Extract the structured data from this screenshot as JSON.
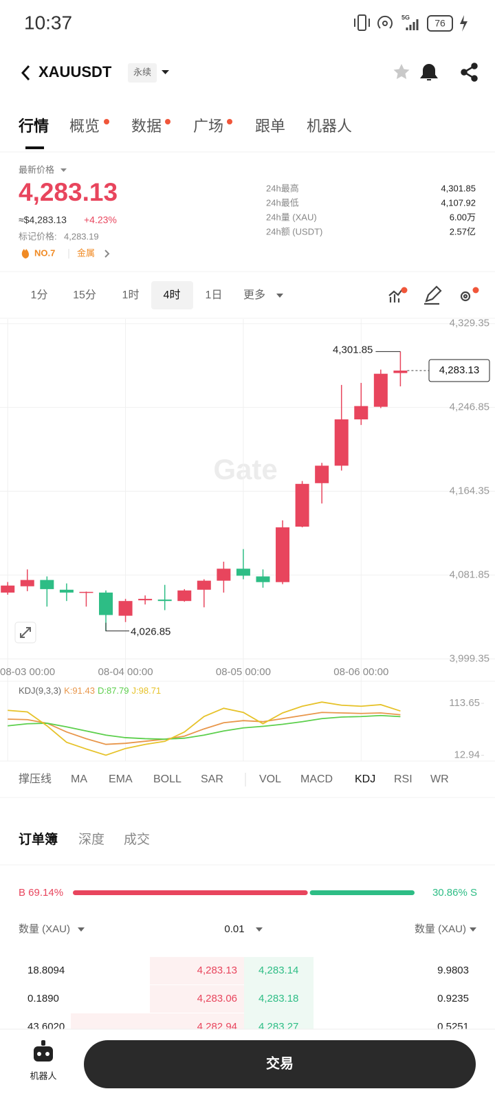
{
  "status_bar": {
    "time": "10:37",
    "network": "5G",
    "battery": "76"
  },
  "header": {
    "symbol": "XAUUSDT",
    "tag": "永续"
  },
  "tabs": [
    "行情",
    "概览",
    "数据",
    "广场",
    "跟单",
    "机器人"
  ],
  "ticker": {
    "label": "最新价格",
    "price": "4,283.13",
    "usd_price": "≈$4,283.13",
    "change": "+4.23%",
    "mark_label": "标记价格:",
    "mark_price": "4,283.19",
    "rank": "NO.7",
    "sector": "金属"
  },
  "stats": [
    {
      "label": "24h最高",
      "value": "4,301.85"
    },
    {
      "label": "24h最低",
      "value": "4,107.92"
    },
    {
      "label": "24h量 (XAU)",
      "value": "6.00万"
    },
    {
      "label": "24h额 (USDT)",
      "value": "2.57亿"
    }
  ],
  "intervals": [
    "1分",
    "15分",
    "1时",
    "4时",
    "1日",
    "更多"
  ],
  "chart": {
    "type": "candlestick",
    "categories": [
      "08-03 00:00",
      null,
      null,
      null,
      null,
      null,
      "08-04 00:00",
      null,
      null,
      null,
      null,
      null,
      "08-05 00:00",
      null,
      null,
      null,
      null,
      null,
      "08-06 00:00",
      null,
      null
    ],
    "open": [
      4064.6,
      4070.8,
      4077.0,
      4067.4,
      4064.6,
      4064.6,
      4041.8,
      4057.0,
      4057.7,
      4056.3,
      4067.4,
      4076.3,
      4088.1,
      4080.5,
      4074.9,
      4129.5,
      4172.3,
      4189.5,
      4235.1,
      4247.5,
      4280.7
    ],
    "high": [
      4075.0,
      4087.4,
      4080.5,
      4073.6,
      4065.6,
      4066.7,
      4058.4,
      4061.8,
      4072.2,
      4068.0,
      4077.7,
      4095.0,
      4107.4,
      4087.4,
      4135.7,
      4174.4,
      4192.3,
      4269.0,
      4271.0,
      4284.1,
      4301.85
    ],
    "low": [
      4062.5,
      4066.0,
      4050.8,
      4056.3,
      4050.8,
      4026.85,
      4035.6,
      4052.9,
      4047.3,
      4055.6,
      4050.1,
      4064.6,
      4077.7,
      4069.4,
      4072.9,
      4128.8,
      4152.3,
      4184.7,
      4229.6,
      4246.2,
      4267.6
    ],
    "close": [
      4071.5,
      4077.0,
      4068.0,
      4064.6,
      4065.3,
      4042.5,
      4056.3,
      4058.4,
      4056.3,
      4066.7,
      4076.3,
      4088.1,
      4081.2,
      4074.9,
      4128.8,
      4171.6,
      4189.5,
      4235.1,
      4248.2,
      4280.0,
      4283.13
    ],
    "up_color": "#e8455d",
    "down_color": "#2dbd85",
    "ylim": [
      3978.6,
      4333.9
    ],
    "yticks": [
      {
        "value": 4329.35,
        "label": "4,329.35"
      },
      {
        "value": 4246.85,
        "label": "4,246.85"
      },
      {
        "value": 4164.35,
        "label": "4,164.35"
      },
      {
        "value": 4081.85,
        "label": "4,081.85"
      },
      {
        "value": 3999.35,
        "label": "3,999.35"
      }
    ],
    "grid": true,
    "watermark": "Gate",
    "high_marker": {
      "value": 4301.85,
      "label": "4,301.85"
    },
    "low_marker": {
      "value": 4026.85,
      "label": "4,026.85"
    },
    "last_price": {
      "value": 4283.13,
      "label": "4,283.13"
    }
  },
  "indicator_chart": {
    "type": "line",
    "title": "KDJ(9,3,3)",
    "ylim": [
      1.6,
      156.3
    ],
    "yticks": [
      113.65,
      12.94
    ],
    "series": [
      {
        "name": "K:91.43",
        "color": "#e8964a",
        "values": [
          83,
          82,
          75,
          58,
          45,
          34,
          36,
          40,
          44,
          50,
          64,
          76,
          80,
          78,
          84,
          90,
          96,
          95,
          94,
          95,
          91.43
        ]
      },
      {
        "name": "D:87.79",
        "color": "#5ccf4c",
        "values": [
          70,
          74,
          75,
          68,
          60,
          52,
          47,
          45,
          44,
          46,
          52,
          60,
          66,
          69,
          73,
          78,
          84,
          87,
          88,
          90,
          87.79
        ]
      },
      {
        "name": "J:98.71",
        "color": "#e6c229",
        "values": [
          100,
          97,
          70,
          38,
          25,
          13,
          26,
          34,
          40,
          58,
          88,
          104,
          96,
          74,
          95,
          108,
          116,
          110,
          108,
          111,
          98.71
        ]
      }
    ]
  },
  "indicator_tabs": [
    "撑压线",
    "MA",
    "EMA",
    "BOLL",
    "SAR",
    "VOL",
    "MACD",
    "KDJ",
    "RSI",
    "WR"
  ],
  "orderbook": {
    "tabs": [
      "订单簿",
      "深度",
      "成交"
    ],
    "buy": {
      "value": 69.14,
      "label": "B 69.14%"
    },
    "sell": {
      "value": 30.86,
      "label": "30.86% S"
    },
    "qty_header_left": "数量 (XAU)",
    "precision": "0.01",
    "qty_header_right": "数量 (XAU)",
    "rows": [
      [
        "18.8094",
        "4,283.13",
        "4,283.14",
        "9.9803"
      ],
      [
        "0.1890",
        "4,283.06",
        "4,283.18",
        "0.9235"
      ],
      [
        "43.6020",
        "4,282.94",
        "4,283.27",
        "0.5251"
      ]
    ]
  },
  "bottom_bar": {
    "robot": "机器人",
    "trade": "交易"
  }
}
